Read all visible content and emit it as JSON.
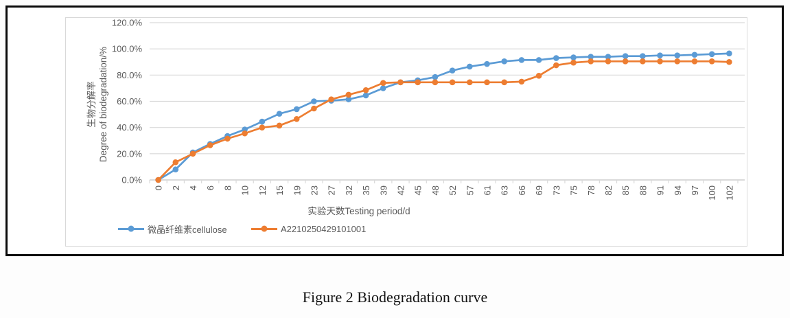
{
  "figure": {
    "caption": "Figure 2 Biodegradation curve"
  },
  "chart_data": {
    "type": "line",
    "x_axis_title": "实验天数Testing period/d",
    "y_axis_title_cn": "生物分解率",
    "y_axis_title_en": "Degree of biodegradation/%",
    "y_tick_labels": [
      "0.0%",
      "20.0%",
      "40.0%",
      "60.0%",
      "80.0%",
      "100.0%",
      "120.0%"
    ],
    "ylim": [
      0,
      120
    ],
    "y_step": 20,
    "grid": true,
    "legend_position": "bottom",
    "categories": [
      0,
      2,
      4,
      6,
      8,
      10,
      12,
      15,
      19,
      23,
      27,
      32,
      35,
      39,
      42,
      45,
      48,
      52,
      57,
      61,
      63,
      66,
      69,
      73,
      75,
      78,
      82,
      85,
      88,
      91,
      94,
      97,
      100,
      102
    ],
    "series": [
      {
        "name": "微晶纤维素cellulose",
        "color": "#5B9BD5",
        "marker": "circle",
        "values": [
          0,
          8,
          21,
          27.5,
          33.5,
          38.5,
          44.5,
          50.5,
          54,
          60,
          60.5,
          61.5,
          64.5,
          70,
          74.5,
          76,
          78.5,
          83.5,
          86.5,
          88.5,
          90.5,
          91.5,
          91.5,
          93,
          93.5,
          94,
          94,
          94.5,
          94.5,
          95,
          95,
          95.5,
          96,
          96.5
        ]
      },
      {
        "name": "A2210250429101001",
        "color": "#ED7D31",
        "marker": "circle",
        "values": [
          0,
          13.5,
          20,
          26.5,
          31.5,
          35.5,
          40,
          41.5,
          46.5,
          54.5,
          61.5,
          65,
          68.5,
          74,
          74.5,
          74.5,
          74.5,
          74.5,
          74.5,
          74.5,
          74.5,
          75,
          79.5,
          87.5,
          89.5,
          90.5,
          90.5,
          90.5,
          90.5,
          90.5,
          90.5,
          90.5,
          90.5,
          90
        ]
      }
    ]
  },
  "colors": {
    "grid": "#d9d9d9",
    "axis_line": "#c3c3c3",
    "chart_text": "#595959",
    "frame_border": "#d9d9d9",
    "outer_border": "#0a0a0a"
  }
}
